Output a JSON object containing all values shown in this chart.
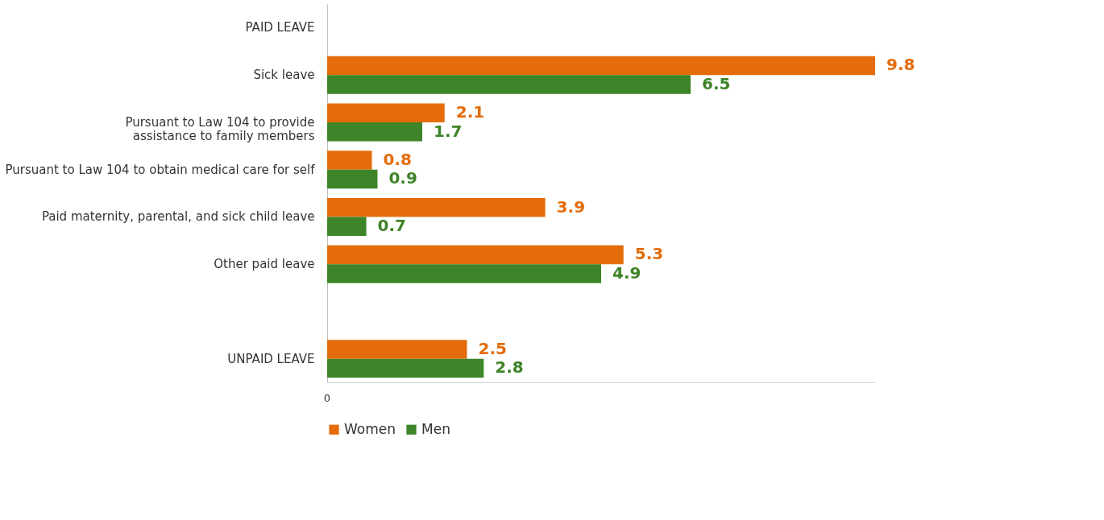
{
  "chart_data": {
    "type": "bar",
    "orientation": "horizontal",
    "categories": [
      "PAID LEAVE",
      "Sick leave",
      "Pursuant to Law 104 to provide\nassistance to family members",
      "Pursuant to Law 104 to obtain medical care for self",
      "Paid maternity, parental, and sick child leave",
      "Other paid leave",
      null,
      "UNPAID LEAVE"
    ],
    "series": [
      {
        "name": "Women",
        "color": "#e46c0a",
        "values": [
          null,
          9.8,
          2.1,
          0.8,
          3.9,
          5.3,
          null,
          2.5
        ]
      },
      {
        "name": "Men",
        "color": "#3e8428",
        "values": [
          null,
          6.5,
          1.7,
          0.9,
          0.7,
          4.9,
          null,
          2.8
        ]
      }
    ],
    "annotations": [
      "0"
    ],
    "data_labels": true,
    "grid": false,
    "legend": "bottom"
  }
}
